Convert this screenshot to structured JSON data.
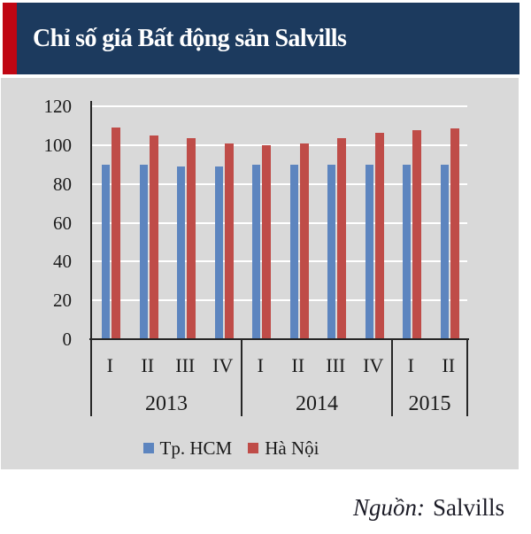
{
  "header": {
    "title": "Chỉ số giá Bất động sản Salvills",
    "bg_color": "#1c3a5e",
    "accent_color": "#c00613",
    "text_color": "#ffffff"
  },
  "chart_data": {
    "type": "bar",
    "title": "Chỉ số giá Bất động sản Salvills",
    "categories": [
      "I",
      "II",
      "III",
      "IV",
      "I",
      "II",
      "III",
      "IV",
      "I",
      "II"
    ],
    "year_groups": [
      {
        "label": "2013",
        "quarters": 4
      },
      {
        "label": "2014",
        "quarters": 4
      },
      {
        "label": "2015",
        "quarters": 2
      }
    ],
    "series": [
      {
        "name": "Tp. HCM",
        "color": "#5d85bf",
        "values": [
          90,
          90,
          89,
          89,
          90,
          90,
          90,
          90,
          90,
          90
        ]
      },
      {
        "name": "Hà Nội",
        "color": "#bf4c48",
        "values": [
          109,
          105,
          103.5,
          101,
          100,
          101,
          103.5,
          106.5,
          107.5,
          108.5
        ]
      }
    ],
    "xlabel": "",
    "ylabel": "",
    "ylim": [
      0,
      120
    ],
    "yticks": [
      0,
      20,
      40,
      60,
      80,
      100,
      120
    ],
    "grid": true,
    "legend_position": "bottom",
    "plot_bg_color": "#d9d9d9",
    "gridline_color": "#ffffff",
    "axis_color": "#262626",
    "tick_text_color": "#1a1a1a"
  },
  "source": {
    "prefix": "Nguồn:",
    "text": "Salvills"
  }
}
